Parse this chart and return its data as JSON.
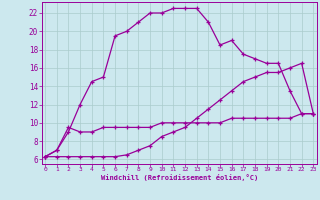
{
  "xlabel": "Windchill (Refroidissement éolien,°C)",
  "bg_color": "#cce8ee",
  "line_color": "#990099",
  "grid_color": "#aacccc",
  "x_ticks": [
    0,
    1,
    2,
    3,
    4,
    5,
    6,
    7,
    8,
    9,
    10,
    11,
    12,
    13,
    14,
    15,
    16,
    17,
    18,
    19,
    20,
    21,
    22,
    23
  ],
  "y_ticks": [
    6,
    8,
    10,
    12,
    14,
    16,
    18,
    20,
    22
  ],
  "ylim": [
    5.5,
    23.2
  ],
  "xlim": [
    -0.3,
    23.3
  ],
  "line1_x": [
    0,
    1,
    2,
    3,
    4,
    5,
    6,
    7,
    8,
    9,
    10,
    11,
    12,
    13,
    14,
    15,
    16,
    17,
    18,
    19,
    20,
    21,
    22,
    23
  ],
  "line1_y": [
    6.3,
    7.0,
    9.0,
    12.0,
    14.5,
    15.0,
    19.5,
    20.0,
    21.0,
    22.0,
    22.0,
    22.5,
    22.5,
    22.5,
    21.0,
    18.5,
    19.0,
    17.5,
    17.0,
    16.5,
    16.5,
    13.5,
    11.0,
    11.0
  ],
  "line2_x": [
    0,
    1,
    2,
    3,
    4,
    5,
    6,
    7,
    8,
    9,
    10,
    11,
    12,
    13,
    14,
    15,
    16,
    17,
    18,
    19,
    20,
    21,
    22,
    23
  ],
  "line2_y": [
    6.3,
    6.3,
    6.3,
    6.3,
    6.3,
    6.3,
    6.3,
    6.5,
    7.0,
    7.5,
    8.5,
    9.0,
    9.5,
    10.5,
    11.5,
    12.5,
    13.5,
    14.5,
    15.0,
    15.5,
    15.5,
    16.0,
    16.5,
    11.0
  ],
  "line3_x": [
    0,
    1,
    2,
    3,
    4,
    5,
    6,
    7,
    8,
    9,
    10,
    11,
    12,
    13,
    14,
    15,
    16,
    17,
    18,
    19,
    20,
    21,
    22,
    23
  ],
  "line3_y": [
    6.3,
    7.0,
    9.5,
    9.0,
    9.0,
    9.5,
    9.5,
    9.5,
    9.5,
    9.5,
    10.0,
    10.0,
    10.0,
    10.0,
    10.0,
    10.0,
    10.5,
    10.5,
    10.5,
    10.5,
    10.5,
    10.5,
    11.0,
    11.0
  ]
}
